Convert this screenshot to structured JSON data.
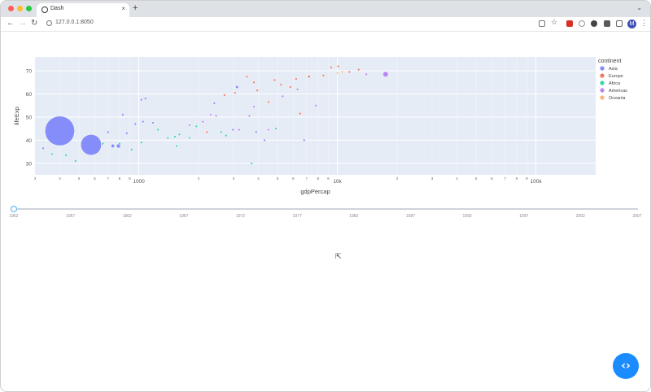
{
  "browser": {
    "tab_title": "Dash",
    "tab_close": "×",
    "new_tab": "+",
    "url": "127.0.0.1:8050",
    "profile_initial": "M"
  },
  "colors": {
    "Asia": "#636efa",
    "Europe": "#ef553b",
    "Africa": "#00cc96",
    "Americas": "#ab63fa",
    "Oceania": "#ffa15a",
    "plot_bg": "#e5ecf6",
    "code_button": "#1a8cff"
  },
  "chart_data": {
    "type": "scatter",
    "xlabel": "gdpPercap",
    "ylabel": "lifeExp",
    "x_scale": "log",
    "xlim": [
      300,
      200000
    ],
    "ylim": [
      25,
      76
    ],
    "y_ticks": [
      30,
      40,
      50,
      60,
      70
    ],
    "x_major_ticks": [
      {
        "value": 1000,
        "label": "1000"
      },
      {
        "value": 10000,
        "label": "10k"
      },
      {
        "value": 100000,
        "label": "100k"
      }
    ],
    "x_minor_ticks": [
      {
        "value": 300,
        "label": "3"
      },
      {
        "value": 400,
        "label": "4"
      },
      {
        "value": 500,
        "label": "5"
      },
      {
        "value": 600,
        "label": "6"
      },
      {
        "value": 700,
        "label": "7"
      },
      {
        "value": 800,
        "label": "8"
      },
      {
        "value": 900,
        "label": "9"
      },
      {
        "value": 2000,
        "label": "2"
      },
      {
        "value": 3000,
        "label": "3"
      },
      {
        "value": 4000,
        "label": "4"
      },
      {
        "value": 5000,
        "label": "5"
      },
      {
        "value": 6000,
        "label": "6"
      },
      {
        "value": 7000,
        "label": "7"
      },
      {
        "value": 8000,
        "label": "8"
      },
      {
        "value": 9000,
        "label": "9"
      },
      {
        "value": 20000,
        "label": "2"
      },
      {
        "value": 30000,
        "label": "3"
      },
      {
        "value": 40000,
        "label": "4"
      },
      {
        "value": 50000,
        "label": "5"
      },
      {
        "value": 60000,
        "label": "6"
      },
      {
        "value": 70000,
        "label": "7"
      },
      {
        "value": 80000,
        "label": "8"
      },
      {
        "value": 90000,
        "label": "9"
      }
    ],
    "grid": true,
    "legend": {
      "title": "continent",
      "position": "right",
      "items": [
        "Asia",
        "Europe",
        "Africa",
        "Americas",
        "Oceania"
      ]
    },
    "series": [
      {
        "name": "Asia",
        "points": [
          {
            "x": 400,
            "y": 44,
            "size": 100
          },
          {
            "x": 575,
            "y": 38,
            "size": 70
          },
          {
            "x": 740,
            "y": 37.5,
            "size": 12
          },
          {
            "x": 790,
            "y": 37.5,
            "size": 14
          },
          {
            "x": 700,
            "y": 43.5,
            "size": 8
          },
          {
            "x": 3120,
            "y": 63,
            "size": 10
          },
          {
            "x": 330,
            "y": 36.5,
            "size": 4
          },
          {
            "x": 830,
            "y": 51,
            "size": 4
          },
          {
            "x": 870,
            "y": 43,
            "size": 4
          },
          {
            "x": 960,
            "y": 47,
            "size": 4
          },
          {
            "x": 1050,
            "y": 48,
            "size": 3
          },
          {
            "x": 1180,
            "y": 47.5,
            "size": 4
          },
          {
            "x": 1080,
            "y": 58,
            "size": 3
          },
          {
            "x": 1030,
            "y": 57.5,
            "size": 3
          },
          {
            "x": 2980,
            "y": 44.5,
            "size": 3
          },
          {
            "x": 3900,
            "y": 43.5,
            "size": 3
          },
          {
            "x": 4300,
            "y": 40,
            "size": 3
          },
          {
            "x": 6800,
            "y": 40,
            "size": 3
          },
          {
            "x": 2400,
            "y": 56,
            "size": 3
          }
        ]
      },
      {
        "name": "Europe",
        "points": [
          {
            "x": 4830,
            "y": 66,
            "size": 8
          },
          {
            "x": 7200,
            "y": 67.5,
            "size": 9
          },
          {
            "x": 11500,
            "y": 69.5,
            "size": 6
          },
          {
            "x": 3800,
            "y": 65,
            "size": 5
          },
          {
            "x": 3950,
            "y": 61.5,
            "size": 4
          },
          {
            "x": 2200,
            "y": 43.5,
            "size": 4
          },
          {
            "x": 5200,
            "y": 64,
            "size": 3
          },
          {
            "x": 6200,
            "y": 66.5,
            "size": 3
          },
          {
            "x": 8500,
            "y": 68,
            "size": 3
          },
          {
            "x": 9300,
            "y": 71.5,
            "size": 3
          },
          {
            "x": 10100,
            "y": 72,
            "size": 3
          },
          {
            "x": 12800,
            "y": 70.5,
            "size": 3
          },
          {
            "x": 3500,
            "y": 67.5,
            "size": 3
          },
          {
            "x": 2700,
            "y": 59.5,
            "size": 3
          },
          {
            "x": 3050,
            "y": 60.5,
            "size": 3
          },
          {
            "x": 5800,
            "y": 63,
            "size": 3
          },
          {
            "x": 4500,
            "y": 56.5,
            "size": 3
          },
          {
            "x": 6500,
            "y": 51.5,
            "size": 3
          }
        ]
      },
      {
        "name": "Africa",
        "points": [
          {
            "x": 920,
            "y": 36,
            "size": 6
          },
          {
            "x": 1520,
            "y": 41.5,
            "size": 5
          },
          {
            "x": 4900,
            "y": 45,
            "size": 4
          },
          {
            "x": 430,
            "y": 33.5,
            "size": 3
          },
          {
            "x": 365,
            "y": 34,
            "size": 4
          },
          {
            "x": 800,
            "y": 38.5,
            "size": 3
          },
          {
            "x": 1400,
            "y": 41,
            "size": 3
          },
          {
            "x": 1600,
            "y": 42.5,
            "size": 3
          },
          {
            "x": 1800,
            "y": 41,
            "size": 3
          },
          {
            "x": 1550,
            "y": 37.5,
            "size": 3
          },
          {
            "x": 480,
            "y": 31,
            "size": 3
          },
          {
            "x": 1030,
            "y": 39,
            "size": 3
          },
          {
            "x": 2750,
            "y": 42,
            "size": 3
          },
          {
            "x": 3700,
            "y": 30,
            "size": 3
          },
          {
            "x": 660,
            "y": 38.5,
            "size": 3
          },
          {
            "x": 1250,
            "y": 44.5,
            "size": 3
          },
          {
            "x": 1950,
            "y": 46,
            "size": 3
          },
          {
            "x": 2600,
            "y": 43.5,
            "size": 3
          }
        ]
      },
      {
        "name": "Americas",
        "points": [
          {
            "x": 17500,
            "y": 68.5,
            "size": 18
          },
          {
            "x": 2450,
            "y": 50.5,
            "size": 8
          },
          {
            "x": 3600,
            "y": 50.5,
            "size": 5
          },
          {
            "x": 6300,
            "y": 62,
            "size": 4
          },
          {
            "x": 14000,
            "y": 68.5,
            "size": 3
          },
          {
            "x": 5300,
            "y": 59,
            "size": 3
          },
          {
            "x": 7800,
            "y": 55,
            "size": 3
          },
          {
            "x": 3800,
            "y": 54.5,
            "size": 3
          },
          {
            "x": 2100,
            "y": 48,
            "size": 3
          },
          {
            "x": 2300,
            "y": 51,
            "size": 3
          },
          {
            "x": 4500,
            "y": 44.5,
            "size": 3
          },
          {
            "x": 3200,
            "y": 44.5,
            "size": 3
          },
          {
            "x": 1800,
            "y": 46.5,
            "size": 3
          }
        ]
      },
      {
        "name": "Oceania",
        "points": [
          {
            "x": 10000,
            "y": 69,
            "size": 3
          },
          {
            "x": 10600,
            "y": 69.5,
            "size": 3
          }
        ]
      }
    ],
    "slider": {
      "years": [
        "1952",
        "1957",
        "1962",
        "1967",
        "1972",
        "1977",
        "1982",
        "1987",
        "1992",
        "1997",
        "2002",
        "2007"
      ],
      "selected": "1952"
    }
  }
}
